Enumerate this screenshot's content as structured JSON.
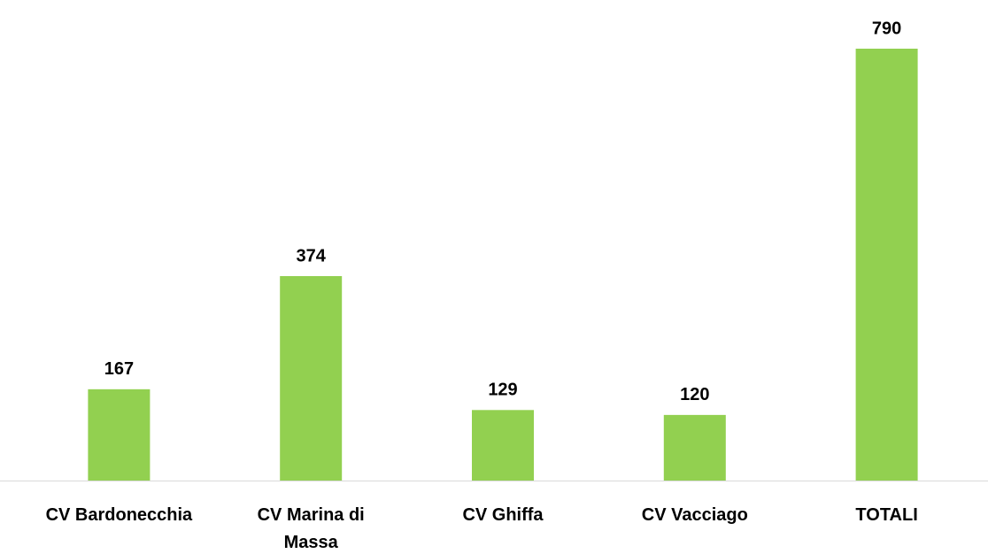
{
  "chart_data": {
    "type": "bar",
    "categories": [
      "CV Bardonecchia",
      "CV Marina di Massa",
      "CV Ghiffa",
      "CV Vacciago",
      "TOTALI"
    ],
    "values": [
      167,
      374,
      129,
      120,
      790
    ],
    "color": "#92d050"
  }
}
